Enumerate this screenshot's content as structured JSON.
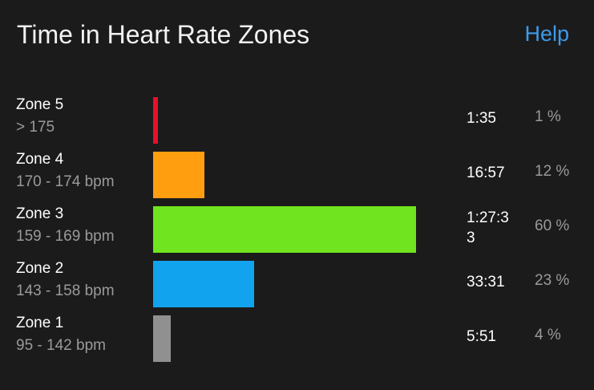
{
  "header": {
    "title": "Time in Heart Rate Zones",
    "help_label": "Help"
  },
  "zones": [
    {
      "name": "Zone 5",
      "range": "> 175",
      "time": "1:35",
      "percent_label": "1 %",
      "bar_fraction": 0.019,
      "color": "#e8102b"
    },
    {
      "name": "Zone 4",
      "range": "170 - 174 bpm",
      "time": "16:57",
      "percent_label": "12 %",
      "bar_fraction": 0.194,
      "color": "#ff9f10"
    },
    {
      "name": "Zone 3",
      "range": "159 - 169 bpm",
      "time": "1:27:33",
      "percent_label": "60 %",
      "bar_fraction": 1.0,
      "color": "#6fe41f"
    },
    {
      "name": "Zone 2",
      "range": "143 - 158 bpm",
      "time": "33:31",
      "percent_label": "23 %",
      "bar_fraction": 0.384,
      "color": "#12a3ee"
    },
    {
      "name": "Zone 1",
      "range": "95 - 142 bpm",
      "time": "5:51",
      "percent_label": "4 %",
      "bar_fraction": 0.067,
      "color": "#909090"
    }
  ]
}
